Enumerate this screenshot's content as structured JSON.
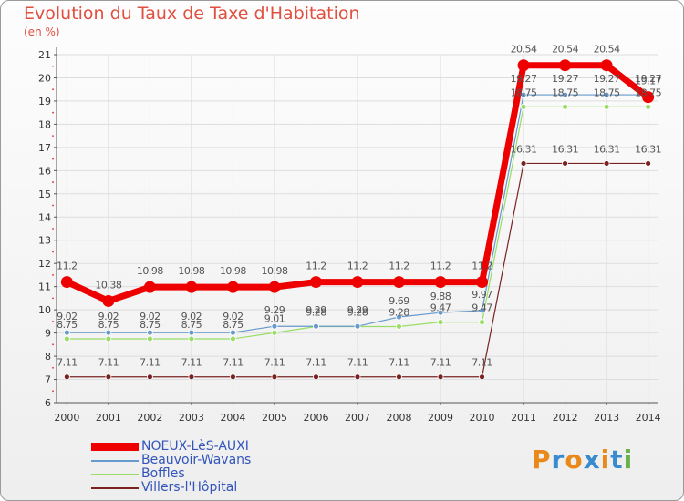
{
  "chart_data": {
    "type": "line",
    "title": "Evolution du Taux de Taxe d'Habitation",
    "ylabel": "(en %)",
    "xlabel": "",
    "ylim": [
      6,
      21
    ],
    "yticks": [
      "6",
      "7",
      "8",
      "9",
      "10",
      "11",
      "12",
      "13",
      "14",
      "15",
      "16",
      "17",
      "18",
      "19",
      "20",
      "21"
    ],
    "x": [
      "2000",
      "2001",
      "2002",
      "2003",
      "2004",
      "2005",
      "2006",
      "2007",
      "2008",
      "2009",
      "2010",
      "2011",
      "2012",
      "2013",
      "2014"
    ],
    "series": [
      {
        "name": "NOEUX-LèS-AUXI",
        "color": "#ee0000",
        "values": [
          11.2,
          10.38,
          10.98,
          10.98,
          10.98,
          10.98,
          11.2,
          11.2,
          11.2,
          11.2,
          11.2,
          20.54,
          20.54,
          20.54,
          19.17
        ],
        "labels": [
          "11.2",
          "10.38",
          "10.98",
          "10.98",
          "10.98",
          "10.98",
          "11.2",
          "11.2",
          "11.2",
          "11.2",
          "11.2",
          "20.54",
          "20.54",
          "20.54",
          "19.17"
        ]
      },
      {
        "name": "Beauvoir-Wavans",
        "color": "#6699cc",
        "values": [
          9.02,
          9.02,
          9.02,
          9.02,
          9.02,
          9.29,
          9.29,
          9.29,
          9.69,
          9.88,
          9.97,
          19.27,
          19.27,
          19.27,
          19.27
        ],
        "labels": [
          "9.02",
          "9.02",
          "9.02",
          "9.02",
          "9.02",
          "9.29",
          "9.29",
          "9.29",
          "9.69",
          "9.88",
          "9.97",
          "19.27",
          "19.27",
          "19.27",
          "19.27"
        ]
      },
      {
        "name": "Boffles",
        "color": "#99dd66",
        "values": [
          8.75,
          8.75,
          8.75,
          8.75,
          8.75,
          9.01,
          9.28,
          9.28,
          9.28,
          9.47,
          9.47,
          18.75,
          18.75,
          18.75,
          18.75
        ],
        "labels": [
          "8.75",
          "8.75",
          "8.75",
          "8.75",
          "8.75",
          "9.01",
          "9.28",
          "9.28",
          "9.28",
          "9.47",
          "9.47",
          "18.75",
          "18.75",
          "18.75",
          "18.75"
        ]
      },
      {
        "name": "Villers-l'Hôpital",
        "color": "#7a2222",
        "values": [
          7.11,
          7.11,
          7.11,
          7.11,
          7.11,
          7.11,
          7.11,
          7.11,
          7.11,
          7.11,
          7.11,
          16.31,
          16.31,
          16.31,
          16.31
        ],
        "labels": [
          "7.11",
          "7.11",
          "7.11",
          "7.11",
          "7.11",
          "7.11",
          "7.11",
          "7.11",
          "7.11",
          "7.11",
          "7.11",
          "16.31",
          "16.31",
          "16.31",
          "16.31"
        ]
      }
    ],
    "legend_position": "bottom-left"
  },
  "branding": {
    "logo_text": "Proxiti",
    "logo_colors": [
      "#e8891a",
      "#3a8ad0",
      "#e8891a",
      "#3a8ad0",
      "#e8891a",
      "#3a8ad0",
      "#6ab04c"
    ]
  }
}
